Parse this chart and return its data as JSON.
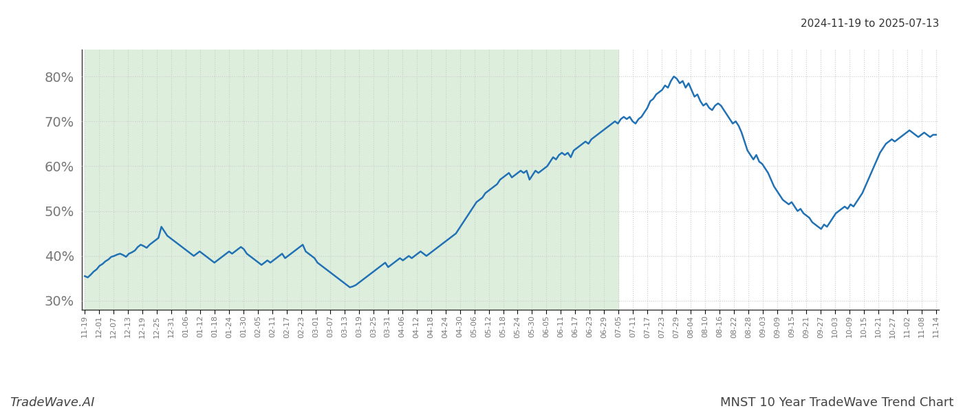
{
  "title_right": "2024-11-19 to 2025-07-13",
  "title_bottom_left": "TradeWave.AI",
  "title_bottom_right": "MNST 10 Year TradeWave Trend Chart",
  "background_color": "#ffffff",
  "shaded_region_color": "#ddeedd",
  "line_color": "#2171b5",
  "line_width": 1.8,
  "ylim": [
    28,
    86
  ],
  "yticks": [
    30,
    40,
    50,
    60,
    70,
    80
  ],
  "ytick_labels": [
    "30%",
    "40%",
    "50%",
    "60%",
    "70%",
    "80%"
  ],
  "grid_color": "#cccccc",
  "grid_linestyle": ":",
  "x_labels": [
    "11-19",
    "12-01",
    "12-07",
    "12-13",
    "12-19",
    "12-25",
    "12-31",
    "01-06",
    "01-12",
    "01-18",
    "01-24",
    "01-30",
    "02-05",
    "02-11",
    "02-17",
    "02-23",
    "03-01",
    "03-07",
    "03-13",
    "03-19",
    "03-25",
    "03-31",
    "04-06",
    "04-12",
    "04-18",
    "04-24",
    "04-30",
    "05-06",
    "05-12",
    "05-18",
    "05-24",
    "05-30",
    "06-05",
    "06-11",
    "06-17",
    "06-23",
    "06-29",
    "07-05",
    "07-11",
    "07-17",
    "07-23",
    "07-29",
    "08-04",
    "08-10",
    "08-16",
    "08-22",
    "08-28",
    "09-03",
    "09-09",
    "09-15",
    "09-21",
    "09-27",
    "10-03",
    "10-09",
    "10-15",
    "10-21",
    "10-27",
    "11-02",
    "11-08",
    "11-14"
  ],
  "shaded_label_start": "11-19",
  "shaded_label_end": "07-05",
  "y_values": [
    35.5,
    35.2,
    35.8,
    36.5,
    37.0,
    37.8,
    38.2,
    38.8,
    39.2,
    39.8,
    40.0,
    40.3,
    40.5,
    40.2,
    39.8,
    40.5,
    40.8,
    41.2,
    42.0,
    42.5,
    42.2,
    41.8,
    42.5,
    43.0,
    43.5,
    44.0,
    46.5,
    45.5,
    44.5,
    44.0,
    43.5,
    43.0,
    42.5,
    42.0,
    41.5,
    41.0,
    40.5,
    40.0,
    40.5,
    41.0,
    40.5,
    40.0,
    39.5,
    39.0,
    38.5,
    39.0,
    39.5,
    40.0,
    40.5,
    41.0,
    40.5,
    41.0,
    41.5,
    42.0,
    41.5,
    40.5,
    40.0,
    39.5,
    39.0,
    38.5,
    38.0,
    38.5,
    39.0,
    38.5,
    39.0,
    39.5,
    40.0,
    40.5,
    39.5,
    40.0,
    40.5,
    41.0,
    41.5,
    42.0,
    42.5,
    41.0,
    40.5,
    40.0,
    39.5,
    38.5,
    38.0,
    37.5,
    37.0,
    36.5,
    36.0,
    35.5,
    35.0,
    34.5,
    34.0,
    33.5,
    33.0,
    33.2,
    33.5,
    34.0,
    34.5,
    35.0,
    35.5,
    36.0,
    36.5,
    37.0,
    37.5,
    38.0,
    38.5,
    37.5,
    38.0,
    38.5,
    39.0,
    39.5,
    39.0,
    39.5,
    40.0,
    39.5,
    40.0,
    40.5,
    41.0,
    40.5,
    40.0,
    40.5,
    41.0,
    41.5,
    42.0,
    42.5,
    43.0,
    43.5,
    44.0,
    44.5,
    45.0,
    46.0,
    47.0,
    48.0,
    49.0,
    50.0,
    51.0,
    52.0,
    52.5,
    53.0,
    54.0,
    54.5,
    55.0,
    55.5,
    56.0,
    57.0,
    57.5,
    58.0,
    58.5,
    57.5,
    58.0,
    58.5,
    59.0,
    58.5,
    59.0,
    57.0,
    58.0,
    59.0,
    58.5,
    59.0,
    59.5,
    60.0,
    61.0,
    62.0,
    61.5,
    62.5,
    63.0,
    62.5,
    63.0,
    62.0,
    63.5,
    64.0,
    64.5,
    65.0,
    65.5,
    65.0,
    66.0,
    66.5,
    67.0,
    67.5,
    68.0,
    68.5,
    69.0,
    69.5,
    70.0,
    69.5,
    70.5,
    71.0,
    70.5,
    71.0,
    70.0,
    69.5,
    70.5,
    71.0,
    72.0,
    73.0,
    74.5,
    75.0,
    76.0,
    76.5,
    77.0,
    78.0,
    77.5,
    79.0,
    80.0,
    79.5,
    78.5,
    79.0,
    77.5,
    78.5,
    77.0,
    75.5,
    76.0,
    74.5,
    73.5,
    74.0,
    73.0,
    72.5,
    73.5,
    74.0,
    73.5,
    72.5,
    71.5,
    70.5,
    69.5,
    70.0,
    69.0,
    67.5,
    65.5,
    63.5,
    62.5,
    61.5,
    62.5,
    61.0,
    60.5,
    59.5,
    58.5,
    57.0,
    55.5,
    54.5,
    53.5,
    52.5,
    52.0,
    51.5,
    52.0,
    51.0,
    50.0,
    50.5,
    49.5,
    49.0,
    48.5,
    47.5,
    47.0,
    46.5,
    46.0,
    47.0,
    46.5,
    47.5,
    48.5,
    49.5,
    50.0,
    50.5,
    51.0,
    50.5,
    51.5,
    51.0,
    52.0,
    53.0,
    54.0,
    55.5,
    57.0,
    58.5,
    60.0,
    61.5,
    63.0,
    64.0,
    65.0,
    65.5,
    66.0,
    65.5,
    66.0,
    66.5,
    67.0,
    67.5,
    68.0,
    67.5,
    67.0,
    66.5,
    67.0,
    67.5,
    67.0,
    66.5,
    67.0,
    67.0
  ]
}
